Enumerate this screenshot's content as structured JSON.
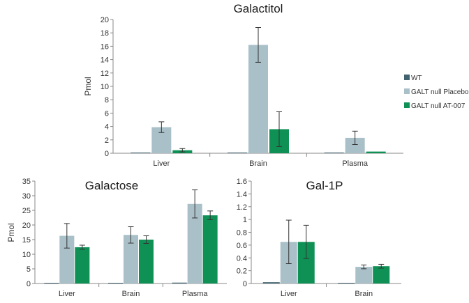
{
  "colors": {
    "WT": "#41626f",
    "GALT null Placebo": "#a9c0c9",
    "GALT null AT-007": "#0f9156",
    "axis": "#888888",
    "error": "#333333"
  },
  "legend": {
    "entries": [
      "WT",
      "GALT null Placebo",
      "GALT null AT-007"
    ]
  },
  "chart_data": [
    {
      "type": "bar",
      "title": "Galactitol",
      "ylabel": "Pmol",
      "ylim": [
        0,
        20
      ],
      "yticks": [
        0,
        2,
        4,
        6,
        8,
        10,
        12,
        14,
        16,
        18,
        20
      ],
      "categories": [
        "Liver",
        "Brain",
        "Plasma"
      ],
      "series": [
        {
          "name": "WT",
          "values": [
            0.05,
            0.1,
            0.05
          ],
          "errors": [
            0.03,
            0.05,
            0.02
          ]
        },
        {
          "name": "GALT null Placebo",
          "values": [
            3.9,
            16.2,
            2.3
          ],
          "errors": [
            0.8,
            2.6,
            1.0
          ]
        },
        {
          "name": "GALT null AT-007",
          "values": [
            0.45,
            3.6,
            0.25
          ],
          "errors": [
            0.25,
            2.6,
            0.15
          ]
        }
      ]
    },
    {
      "type": "bar",
      "title": "Galactose",
      "ylabel": "Pmol",
      "ylim": [
        0,
        35
      ],
      "yticks": [
        0,
        5,
        10,
        15,
        20,
        25,
        30,
        35
      ],
      "categories": [
        "Liver",
        "Brain",
        "Plasma"
      ],
      "series": [
        {
          "name": "WT",
          "values": [
            0.1,
            0.2,
            0.3
          ],
          "errors": [
            0.05,
            0.1,
            0.1
          ]
        },
        {
          "name": "GALT null Placebo",
          "values": [
            16.3,
            16.6,
            27.2
          ],
          "errors": [
            4.2,
            2.8,
            4.8
          ]
        },
        {
          "name": "GALT null AT-007",
          "values": [
            12.4,
            15.0,
            23.3
          ],
          "errors": [
            0.7,
            1.3,
            1.5
          ]
        }
      ]
    },
    {
      "type": "bar",
      "title": "Gal-1P",
      "ylabel": "",
      "ylim": [
        0,
        1.6
      ],
      "yticks": [
        "0",
        "0.2",
        "0.4",
        "0.6",
        "0.8",
        "1",
        "1.2",
        "1.4",
        "1.6"
      ],
      "categories": [
        "Liver",
        "Brain"
      ],
      "series": [
        {
          "name": "WT",
          "values": [
            0.02,
            0.01
          ],
          "errors": [
            0.015,
            0.005
          ]
        },
        {
          "name": "GALT null Placebo",
          "values": [
            0.65,
            0.26
          ],
          "errors": [
            0.34,
            0.03
          ]
        },
        {
          "name": "GALT null AT-007",
          "values": [
            0.65,
            0.27
          ],
          "errors": [
            0.26,
            0.03
          ]
        }
      ]
    }
  ]
}
